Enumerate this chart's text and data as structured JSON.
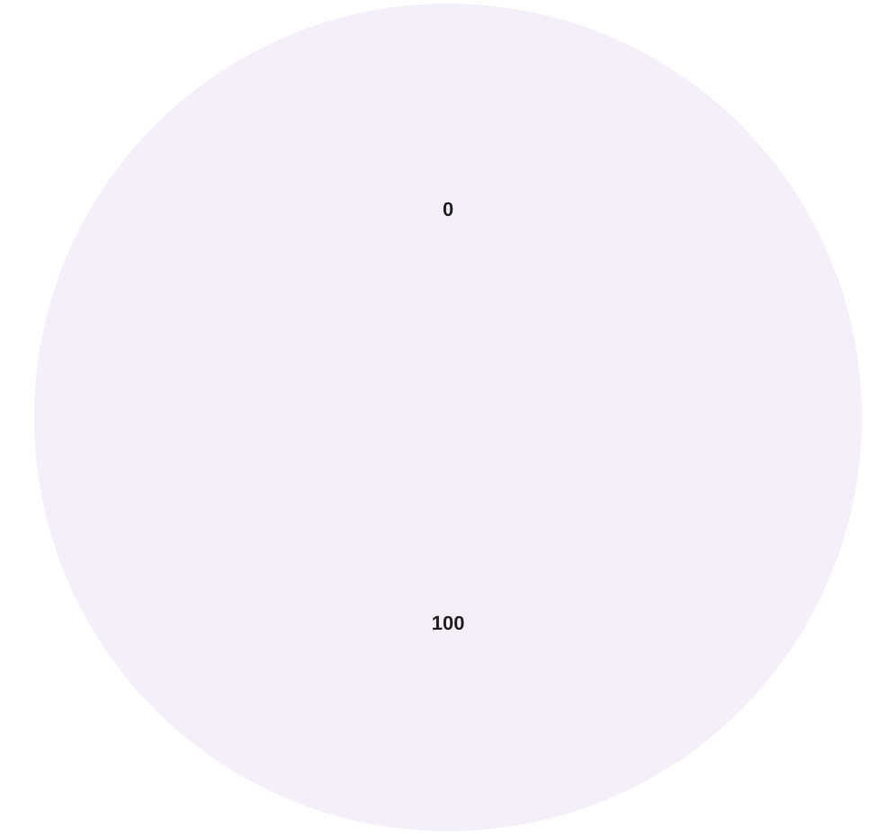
{
  "chart_data": {
    "type": "pie",
    "categories": [
      null,
      null
    ],
    "values": [
      0,
      100
    ],
    "colors": [
      "#f4eff8",
      "#f4eff8"
    ],
    "value_labels": [
      "0",
      "100"
    ]
  }
}
